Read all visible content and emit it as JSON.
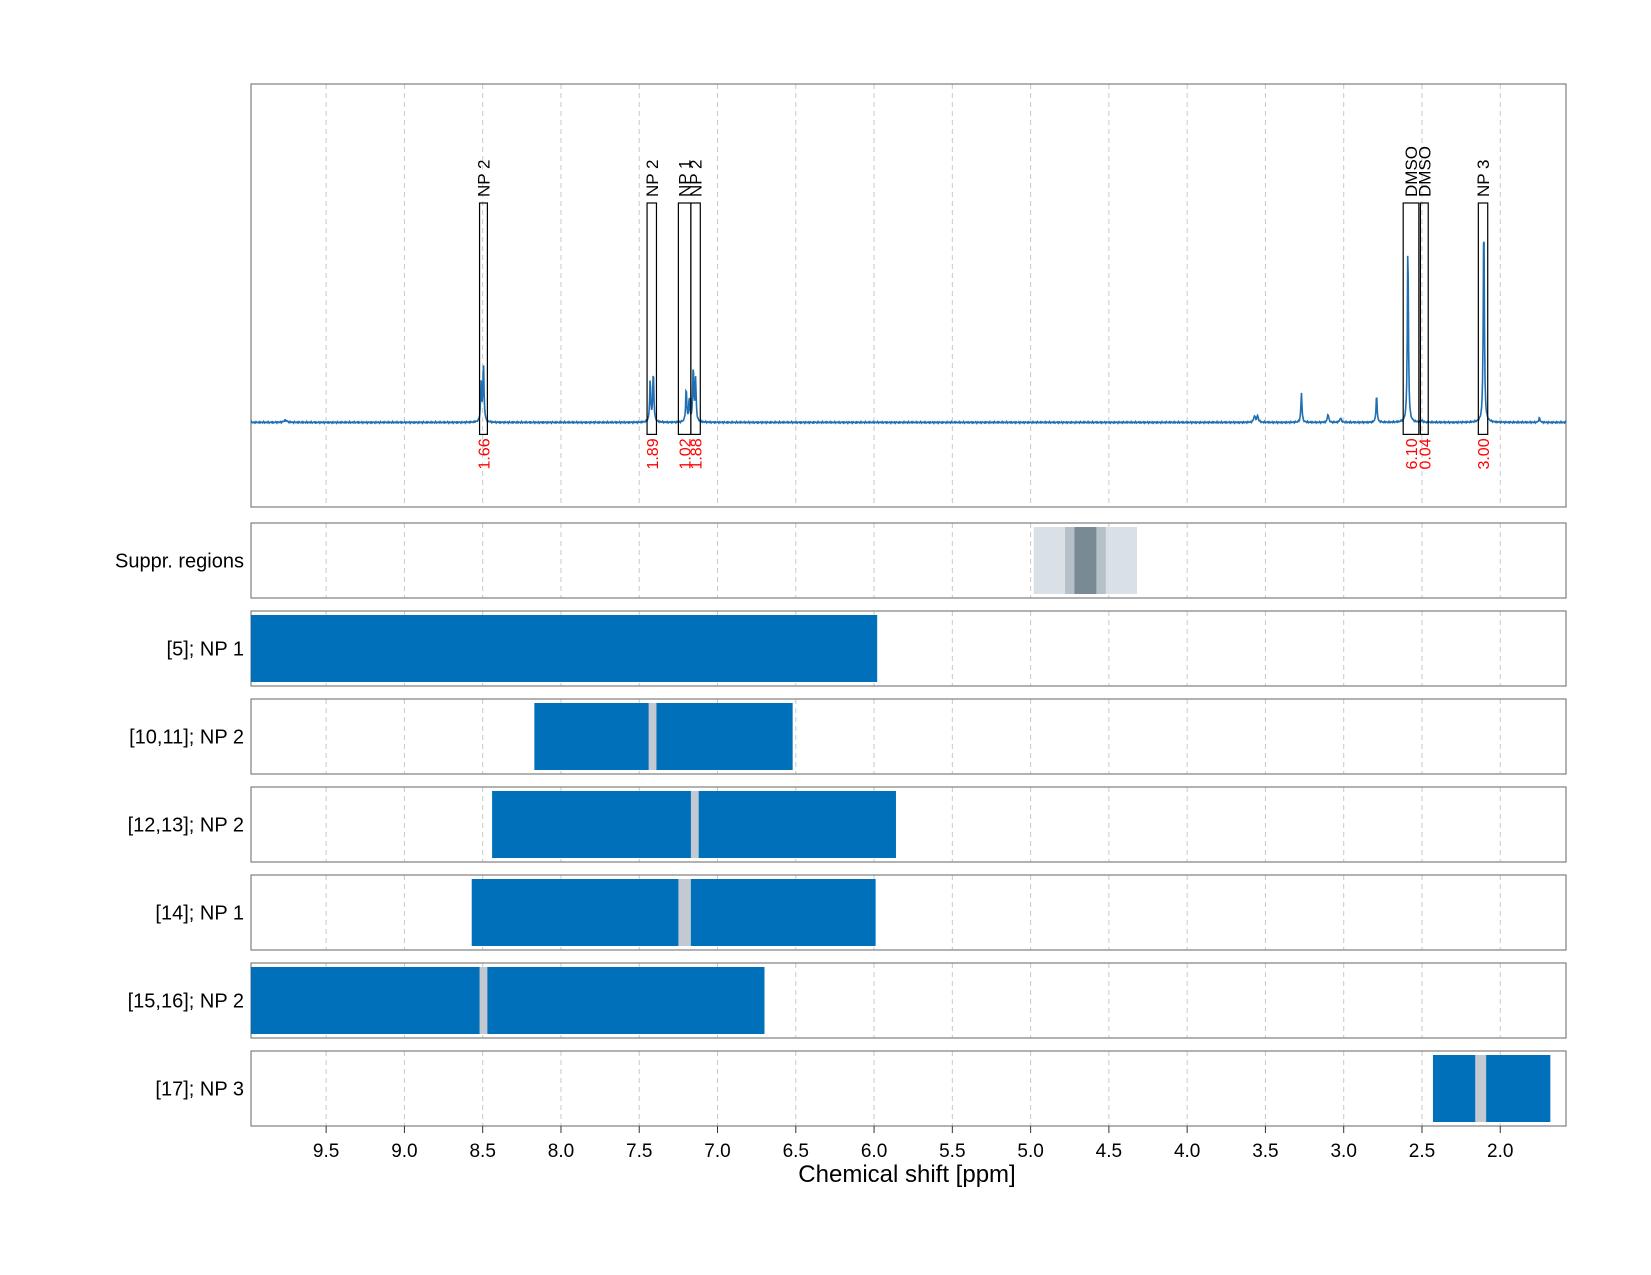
{
  "chart_data": {
    "type": "line",
    "xlabel": "Chemical shift [ppm]",
    "xlim": [
      9.98,
      1.58
    ],
    "x_ticks": [
      9.5,
      9.0,
      8.5,
      8.0,
      7.5,
      7.0,
      6.5,
      6.0,
      5.5,
      5.0,
      4.5,
      4.0,
      3.5,
      3.0,
      2.5,
      2.0
    ],
    "x_tick_labels": [
      "9.5",
      "9.0",
      "8.5",
      "8.0",
      "7.5",
      "7.0",
      "6.5",
      "6.0",
      "5.5",
      "5.0",
      "4.5",
      "4.0",
      "3.5",
      "3.0",
      "2.5",
      "2.0"
    ],
    "grid": "vertical-dashed",
    "colors": {
      "spectrum": "#1f6fb4",
      "bar": "#0070bb",
      "gap": "#c2c9d0",
      "integral_text": "#ff0000",
      "suppr_light": "#d9e0e6",
      "suppr_mid": "#b6c0c8",
      "suppr_dark": "#7a8a95"
    },
    "spectrum": {
      "baseline": 0,
      "ylim": [
        -0.4,
        1.6
      ],
      "peaks": [
        {
          "x": 9.76,
          "y": 0.01,
          "w": 0.012
        },
        {
          "x": 8.495,
          "y": 0.28,
          "w": 0.004
        },
        {
          "x": 8.51,
          "y": 0.18,
          "w": 0.004
        },
        {
          "x": 7.43,
          "y": 0.2,
          "w": 0.004
        },
        {
          "x": 7.41,
          "y": 0.24,
          "w": 0.004
        },
        {
          "x": 7.2,
          "y": 0.16,
          "w": 0.004
        },
        {
          "x": 7.18,
          "y": 0.11,
          "w": 0.004
        },
        {
          "x": 7.155,
          "y": 0.26,
          "w": 0.004
        },
        {
          "x": 7.14,
          "y": 0.2,
          "w": 0.004
        },
        {
          "x": 3.57,
          "y": 0.03,
          "w": 0.006
        },
        {
          "x": 3.55,
          "y": 0.03,
          "w": 0.006
        },
        {
          "x": 3.27,
          "y": 0.14,
          "w": 0.004
        },
        {
          "x": 3.1,
          "y": 0.04,
          "w": 0.005
        },
        {
          "x": 3.02,
          "y": 0.02,
          "w": 0.006
        },
        {
          "x": 2.79,
          "y": 0.13,
          "w": 0.004
        },
        {
          "x": 2.59,
          "y": 0.86,
          "w": 0.004
        },
        {
          "x": 2.5,
          "y": 0.01,
          "w": 0.004
        },
        {
          "x": 2.105,
          "y": 0.99,
          "w": 0.004
        },
        {
          "x": 1.75,
          "y": 0.02,
          "w": 0.005
        }
      ]
    },
    "annotations": [
      {
        "label": "NP 2",
        "x0": 8.52,
        "x1": 8.47,
        "integral": "1.66"
      },
      {
        "label": "NP 2",
        "x0": 7.45,
        "x1": 7.39,
        "integral": "1.89"
      },
      {
        "label": "NP 1",
        "x0": 7.25,
        "x1": 7.17,
        "integral": "1.02"
      },
      {
        "label": "NP 2",
        "x0": 7.17,
        "x1": 7.11,
        "integral": "1.88"
      },
      {
        "label": "DMSO",
        "x0": 2.62,
        "x1": 2.52,
        "integral": "6.10"
      },
      {
        "label": "DMSO",
        "x0": 2.51,
        "x1": 2.46,
        "integral": "0.04"
      },
      {
        "label": "NP 3",
        "x0": 2.14,
        "x1": 2.08,
        "integral": "3.00"
      }
    ],
    "rows": [
      {
        "label": "Suppr. regions",
        "kind": "suppression",
        "segments": [
          {
            "x0": 4.98,
            "x1": 4.32,
            "shade": "light"
          },
          {
            "x0": 4.78,
            "x1": 4.52,
            "shade": "mid"
          },
          {
            "x0": 4.72,
            "x1": 4.58,
            "shade": "dark"
          }
        ]
      },
      {
        "label": "[5]; NP 1",
        "kind": "bar",
        "x0": 9.98,
        "x1": 5.98,
        "gaps": []
      },
      {
        "label": "[10,11]; NP 2",
        "kind": "bar",
        "x0": 8.17,
        "x1": 6.52,
        "gaps": [
          [
            7.44,
            7.39
          ]
        ]
      },
      {
        "label": "[12,13]; NP 2",
        "kind": "bar",
        "x0": 8.44,
        "x1": 5.86,
        "gaps": [
          [
            7.17,
            7.12
          ]
        ]
      },
      {
        "label": "[14]; NP 1",
        "kind": "bar",
        "x0": 8.57,
        "x1": 5.99,
        "gaps": [
          [
            7.25,
            7.17
          ]
        ]
      },
      {
        "label": "[15,16]; NP 2",
        "kind": "bar",
        "x0": 9.98,
        "x1": 6.7,
        "gaps": [
          [
            8.52,
            8.47
          ]
        ]
      },
      {
        "label": "[17]; NP 3",
        "kind": "bar",
        "x0": 2.43,
        "x1": 1.68,
        "gaps": [
          [
            2.16,
            2.09
          ]
        ]
      }
    ]
  }
}
